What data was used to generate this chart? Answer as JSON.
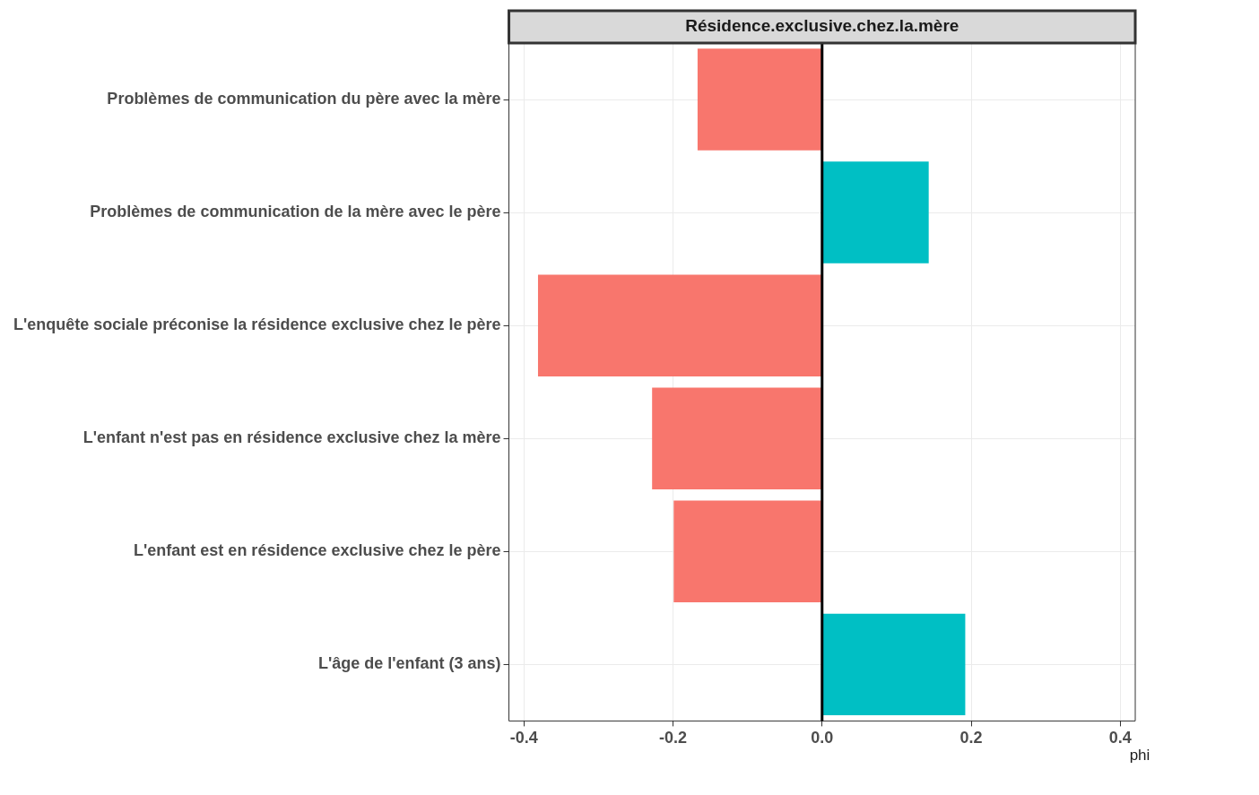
{
  "chart_data": {
    "type": "bar",
    "orientation": "horizontal",
    "title": "Résidence.exclusive.chez.la.mère",
    "xlabel": "phi",
    "categories": [
      "Problèmes de communication du père avec la mère",
      "Problèmes de communication de la mère avec le père",
      "L'enquête sociale préconise la résidence exclusive chez le père",
      "L'enfant n'est pas en résidence exclusive chez la mère",
      "L'enfant est en résidence exclusive chez le père",
      "L'âge de l'enfant (3 ans)"
    ],
    "values": [
      -0.167,
      0.143,
      -0.381,
      -0.228,
      -0.199,
      0.192
    ],
    "colors": [
      "#f8766d",
      "#00bfc4",
      "#f8766d",
      "#f8766d",
      "#f8766d",
      "#00bfc4"
    ],
    "xlim": [
      -0.42,
      0.42
    ],
    "xticks": [
      -0.4,
      -0.2,
      {
        "value": 0,
        "label": "0.0"
      },
      0.2,
      0.4
    ],
    "ref_lines": [
      {
        "axis": "x",
        "value": 0,
        "color": "#000000"
      }
    ],
    "grid": true,
    "legend": false
  }
}
